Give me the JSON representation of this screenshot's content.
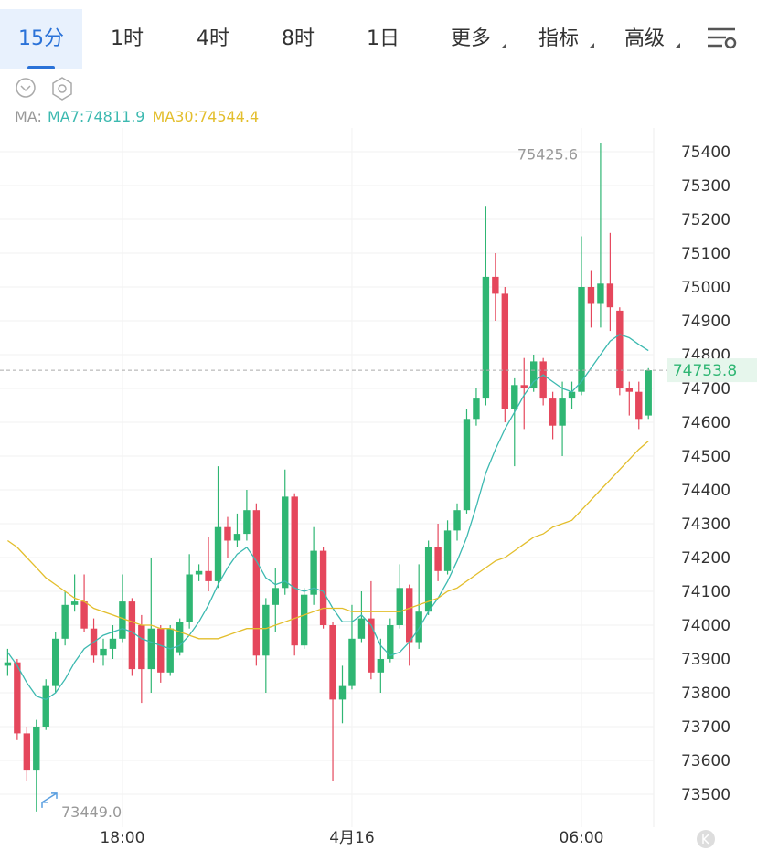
{
  "tabs": [
    "15分",
    "1时",
    "4时",
    "8时",
    "1日",
    "更多",
    "指标",
    "高级"
  ],
  "chart_data": {
    "type": "candlestick",
    "ma_prefix": "MA:",
    "categories": [
      null,
      null,
      null,
      null,
      null,
      null,
      null,
      null,
      null,
      null,
      null,
      null,
      "18:00",
      null,
      null,
      null,
      null,
      null,
      null,
      null,
      null,
      null,
      null,
      null,
      null,
      null,
      null,
      null,
      null,
      null,
      null,
      null,
      null,
      null,
      null,
      null,
      "4月16",
      null,
      null,
      null,
      null,
      null,
      null,
      null,
      null,
      null,
      null,
      null,
      null,
      null,
      null,
      null,
      null,
      null,
      null,
      null,
      null,
      null,
      null,
      null,
      "06:00",
      null,
      null,
      null,
      null,
      null,
      null,
      null
    ],
    "series": [
      {
        "type": "candlestick",
        "up_color": "#2fb673",
        "down_color": "#e5475c",
        "open": [
          73880,
          73890,
          73680,
          73570,
          73700,
          73820,
          73960,
          74060,
          74070,
          73990,
          73910,
          73930,
          73960,
          74070,
          74000,
          73870,
          73990,
          73860,
          73920,
          74010,
          74150,
          74160,
          74130,
          74290,
          74250,
          74270,
          74340,
          73910,
          74060,
          74110,
          74380,
          73940,
          74090,
          74220,
          74000,
          73780,
          73820,
          73960,
          74020,
          73860,
          73900,
          74000,
          74110,
          73950,
          74040,
          74230,
          74160,
          74280,
          74340,
          74610,
          74670,
          75030,
          74980,
          74640,
          74710,
          74700,
          74780,
          74670,
          74590,
          74670,
          74690,
          75000,
          74950,
          75010,
          74930,
          74700,
          74690,
          74620
        ],
        "close": [
          73890,
          73680,
          73570,
          73700,
          73820,
          73960,
          74060,
          74070,
          73990,
          73910,
          73930,
          73960,
          74070,
          73870,
          73870,
          73990,
          73860,
          73990,
          74010,
          74150,
          74160,
          74130,
          74290,
          74250,
          74270,
          74340,
          73910,
          74060,
          74110,
          74380,
          73940,
          74090,
          74220,
          74000,
          73780,
          73820,
          73960,
          74020,
          73860,
          73900,
          74000,
          74110,
          73950,
          74040,
          74230,
          74160,
          74280,
          74340,
          74610,
          74670,
          75030,
          74980,
          74640,
          74710,
          74700,
          74780,
          74670,
          74590,
          74670,
          74690,
          75000,
          74950,
          75010,
          74940,
          74700,
          74690,
          74610,
          74753.8
        ],
        "high": [
          73930,
          73900,
          73700,
          73720,
          73840,
          73980,
          74100,
          74150,
          74150,
          74020,
          73960,
          74000,
          74150,
          74080,
          74030,
          74200,
          74000,
          74000,
          74020,
          74210,
          74180,
          74260,
          74470,
          74320,
          74330,
          74400,
          74360,
          74080,
          74170,
          74460,
          74390,
          74110,
          74290,
          74230,
          74010,
          73880,
          74060,
          74100,
          74130,
          73960,
          74020,
          74180,
          74120,
          74180,
          74250,
          74300,
          74310,
          74360,
          74640,
          74700,
          75240,
          75100,
          75000,
          74730,
          74790,
          74800,
          74790,
          74690,
          74720,
          74720,
          75150,
          75050,
          75425.6,
          75160,
          74940,
          74720,
          74720,
          74760
        ],
        "low": [
          73850,
          73660,
          73540,
          73449,
          73690,
          73800,
          73940,
          74040,
          73980,
          73890,
          73880,
          73900,
          73950,
          73850,
          73770,
          73800,
          73830,
          73850,
          73910,
          73990,
          74130,
          74100,
          74110,
          74200,
          74230,
          74250,
          73880,
          73800,
          73980,
          74090,
          73910,
          73930,
          74060,
          73990,
          73540,
          73710,
          73810,
          73950,
          73840,
          73800,
          73890,
          73990,
          73880,
          73930,
          74030,
          74130,
          74150,
          74250,
          74330,
          74590,
          74650,
          74900,
          74600,
          74470,
          74580,
          74690,
          74650,
          74550,
          74500,
          74640,
          74680,
          74880,
          74880,
          74870,
          74680,
          74620,
          74580,
          74610
        ]
      },
      {
        "type": "line",
        "label": "MA7:74811.9",
        "color": "#3cb9b0",
        "values": [
          73920,
          73880,
          73830,
          73790,
          73780,
          73800,
          73840,
          73890,
          73930,
          73950,
          73970,
          73980,
          73990,
          73980,
          73960,
          73950,
          73940,
          73930,
          73940,
          73970,
          74010,
          74060,
          74120,
          74170,
          74210,
          74230,
          74190,
          74140,
          74120,
          74130,
          74110,
          74100,
          74110,
          74100,
          74050,
          74010,
          74010,
          74030,
          74000,
          73940,
          73910,
          73920,
          73950,
          73990,
          74040,
          74080,
          74130,
          74190,
          74260,
          74350,
          74450,
          74520,
          74580,
          74630,
          74680,
          74720,
          74740,
          74720,
          74700,
          74690,
          74720,
          74760,
          74800,
          74840,
          74860,
          74850,
          74830,
          74811.9
        ]
      },
      {
        "type": "line",
        "label": "MA30:74544.4",
        "color": "#e3be2c",
        "values": [
          74250,
          74230,
          74200,
          74170,
          74140,
          74120,
          74100,
          74080,
          74070,
          74050,
          74040,
          74030,
          74020,
          74010,
          74000,
          74000,
          73990,
          73990,
          73980,
          73970,
          73960,
          73960,
          73960,
          73970,
          73980,
          73990,
          73990,
          73990,
          74000,
          74010,
          74020,
          74030,
          74040,
          74050,
          74050,
          74050,
          74040,
          74040,
          74040,
          74040,
          74040,
          74040,
          74050,
          74060,
          74070,
          74080,
          74100,
          74110,
          74130,
          74150,
          74170,
          74190,
          74200,
          74220,
          74240,
          74260,
          74270,
          74290,
          74300,
          74310,
          74340,
          74370,
          74400,
          74430,
          74460,
          74490,
          74520,
          74544.4
        ]
      }
    ],
    "ylim": [
      73400,
      75500
    ],
    "yticks": [
      73500,
      73600,
      73700,
      73800,
      73900,
      74000,
      74100,
      74200,
      74300,
      74400,
      74500,
      74600,
      74700,
      74800,
      74900,
      75000,
      75100,
      75200,
      75300,
      75400
    ],
    "grid": true,
    "current_price": 74753.8,
    "high_annotation": 75425.6,
    "low_annotation": {
      "value": 73449,
      "label": "73449.0"
    }
  }
}
